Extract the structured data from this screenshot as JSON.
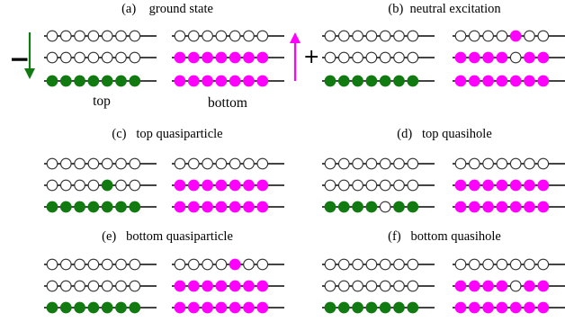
{
  "colors": {
    "top_filled": "#117a11",
    "bottom_filled": "#ff00ff",
    "empty": "#ffffff",
    "line": "#444444",
    "minus_arrow": "#117a11",
    "plus_arrow": "#ff00ff"
  },
  "labels": {
    "top": "top",
    "bottom": "bottom",
    "minus": "−",
    "plus": "+"
  },
  "panels": [
    {
      "title": "(a)    ground state",
      "top": [
        "0000000",
        "0000000",
        "1111111"
      ],
      "bottom": [
        "0000000",
        "1111111",
        "1111111"
      ]
    },
    {
      "title": "(b)  neutral excitation",
      "top": [
        "0000000",
        "0000000",
        "1111111"
      ],
      "bottom": [
        "0000100",
        "1111011",
        "1111111"
      ]
    },
    {
      "title": "(c)   top quasiparticle",
      "top": [
        "0000000",
        "0000100",
        "1111111"
      ],
      "bottom": [
        "0000000",
        "1111111",
        "1111111"
      ]
    },
    {
      "title": "(d)   top quasihole",
      "top": [
        "0000000",
        "0000000",
        "1111011"
      ],
      "bottom": [
        "0000000",
        "1111111",
        "1111111"
      ]
    },
    {
      "title": "(e)   bottom quasiparticle",
      "top": [
        "0000000",
        "0000000",
        "1111111"
      ],
      "bottom": [
        "0000100",
        "1111111",
        "1111111"
      ]
    },
    {
      "title": "(f)   bottom quasihole",
      "top": [
        "0000000",
        "0000000",
        "1111111"
      ],
      "bottom": [
        "0000000",
        "1111011",
        "1111111"
      ]
    }
  ]
}
